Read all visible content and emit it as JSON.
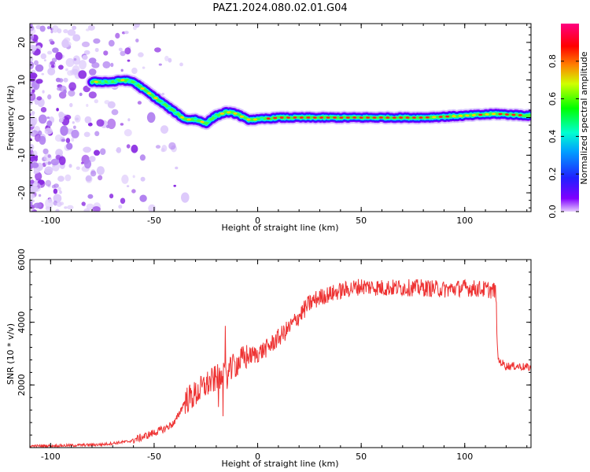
{
  "title": "PAZ1.2024.080.02.01.G04",
  "colors": {
    "snr_line": "#ee3333",
    "axes": "#000000"
  },
  "chart_data": [
    {
      "type": "heatmap",
      "xlabel": "Height of straight line (km)",
      "ylabel": "Frequency (Hz)",
      "xlim": [
        -110,
        132
      ],
      "ylim": [
        -25,
        25
      ],
      "x_ticks": [
        -100,
        -50,
        0,
        50,
        100
      ],
      "y_ticks": [
        -20,
        -10,
        0,
        10,
        20
      ],
      "colorbar": {
        "label": "Normalized spectral amplitude",
        "range": [
          0,
          1
        ],
        "ticks": [
          "0.0",
          "0.2",
          "0.4",
          "0.6",
          "0.8"
        ],
        "colormap": "gist_rainbow-like (violet -> blue -> cyan -> green -> yellow -> red -> magenta)"
      },
      "ridge": {
        "x": [
          -80,
          -75,
          -70,
          -65,
          -60,
          -55,
          -50,
          -45,
          -40,
          -35,
          -30,
          -25,
          -20,
          -15,
          -10,
          -5,
          0,
          10,
          20,
          50,
          80,
          100,
          115,
          132
        ],
        "y": [
          9.5,
          9.5,
          9.5,
          10,
          9.5,
          7.5,
          5.5,
          3.5,
          1.5,
          -0.5,
          -0.5,
          -1.5,
          0.5,
          1.5,
          1.0,
          -0.5,
          -0.5,
          0,
          0,
          0,
          0,
          0.5,
          1.0,
          0.5
        ]
      }
    },
    {
      "type": "line",
      "xlabel": "Height of straight line (km)",
      "ylabel": "SNR (10 * v/v)",
      "xlim": [
        -110,
        132
      ],
      "ylim": [
        0,
        6000
      ],
      "x_ticks": [
        -100,
        -50,
        0,
        50,
        100
      ],
      "y_ticks": [
        2000,
        4000,
        6000
      ],
      "series": [
        {
          "x": [
            -110,
            -90,
            -75,
            -62,
            -55,
            -45,
            -40,
            -35,
            -30,
            -25,
            -20,
            -15,
            -10,
            -5,
            0,
            5,
            10,
            15,
            20,
            25,
            30,
            40,
            50,
            60,
            70,
            80,
            90,
            100,
            110,
            115,
            116,
            120,
            125,
            132
          ],
          "values": [
            50,
            70,
            100,
            200,
            350,
            600,
            800,
            1500,
            1700,
            2000,
            2200,
            2300,
            2700,
            2900,
            3000,
            3200,
            3500,
            3800,
            4200,
            4600,
            4800,
            5000,
            5150,
            5100,
            5100,
            5100,
            5050,
            5100,
            5050,
            5000,
            2800,
            2600,
            2600,
            2550
          ]
        }
      ]
    }
  ]
}
